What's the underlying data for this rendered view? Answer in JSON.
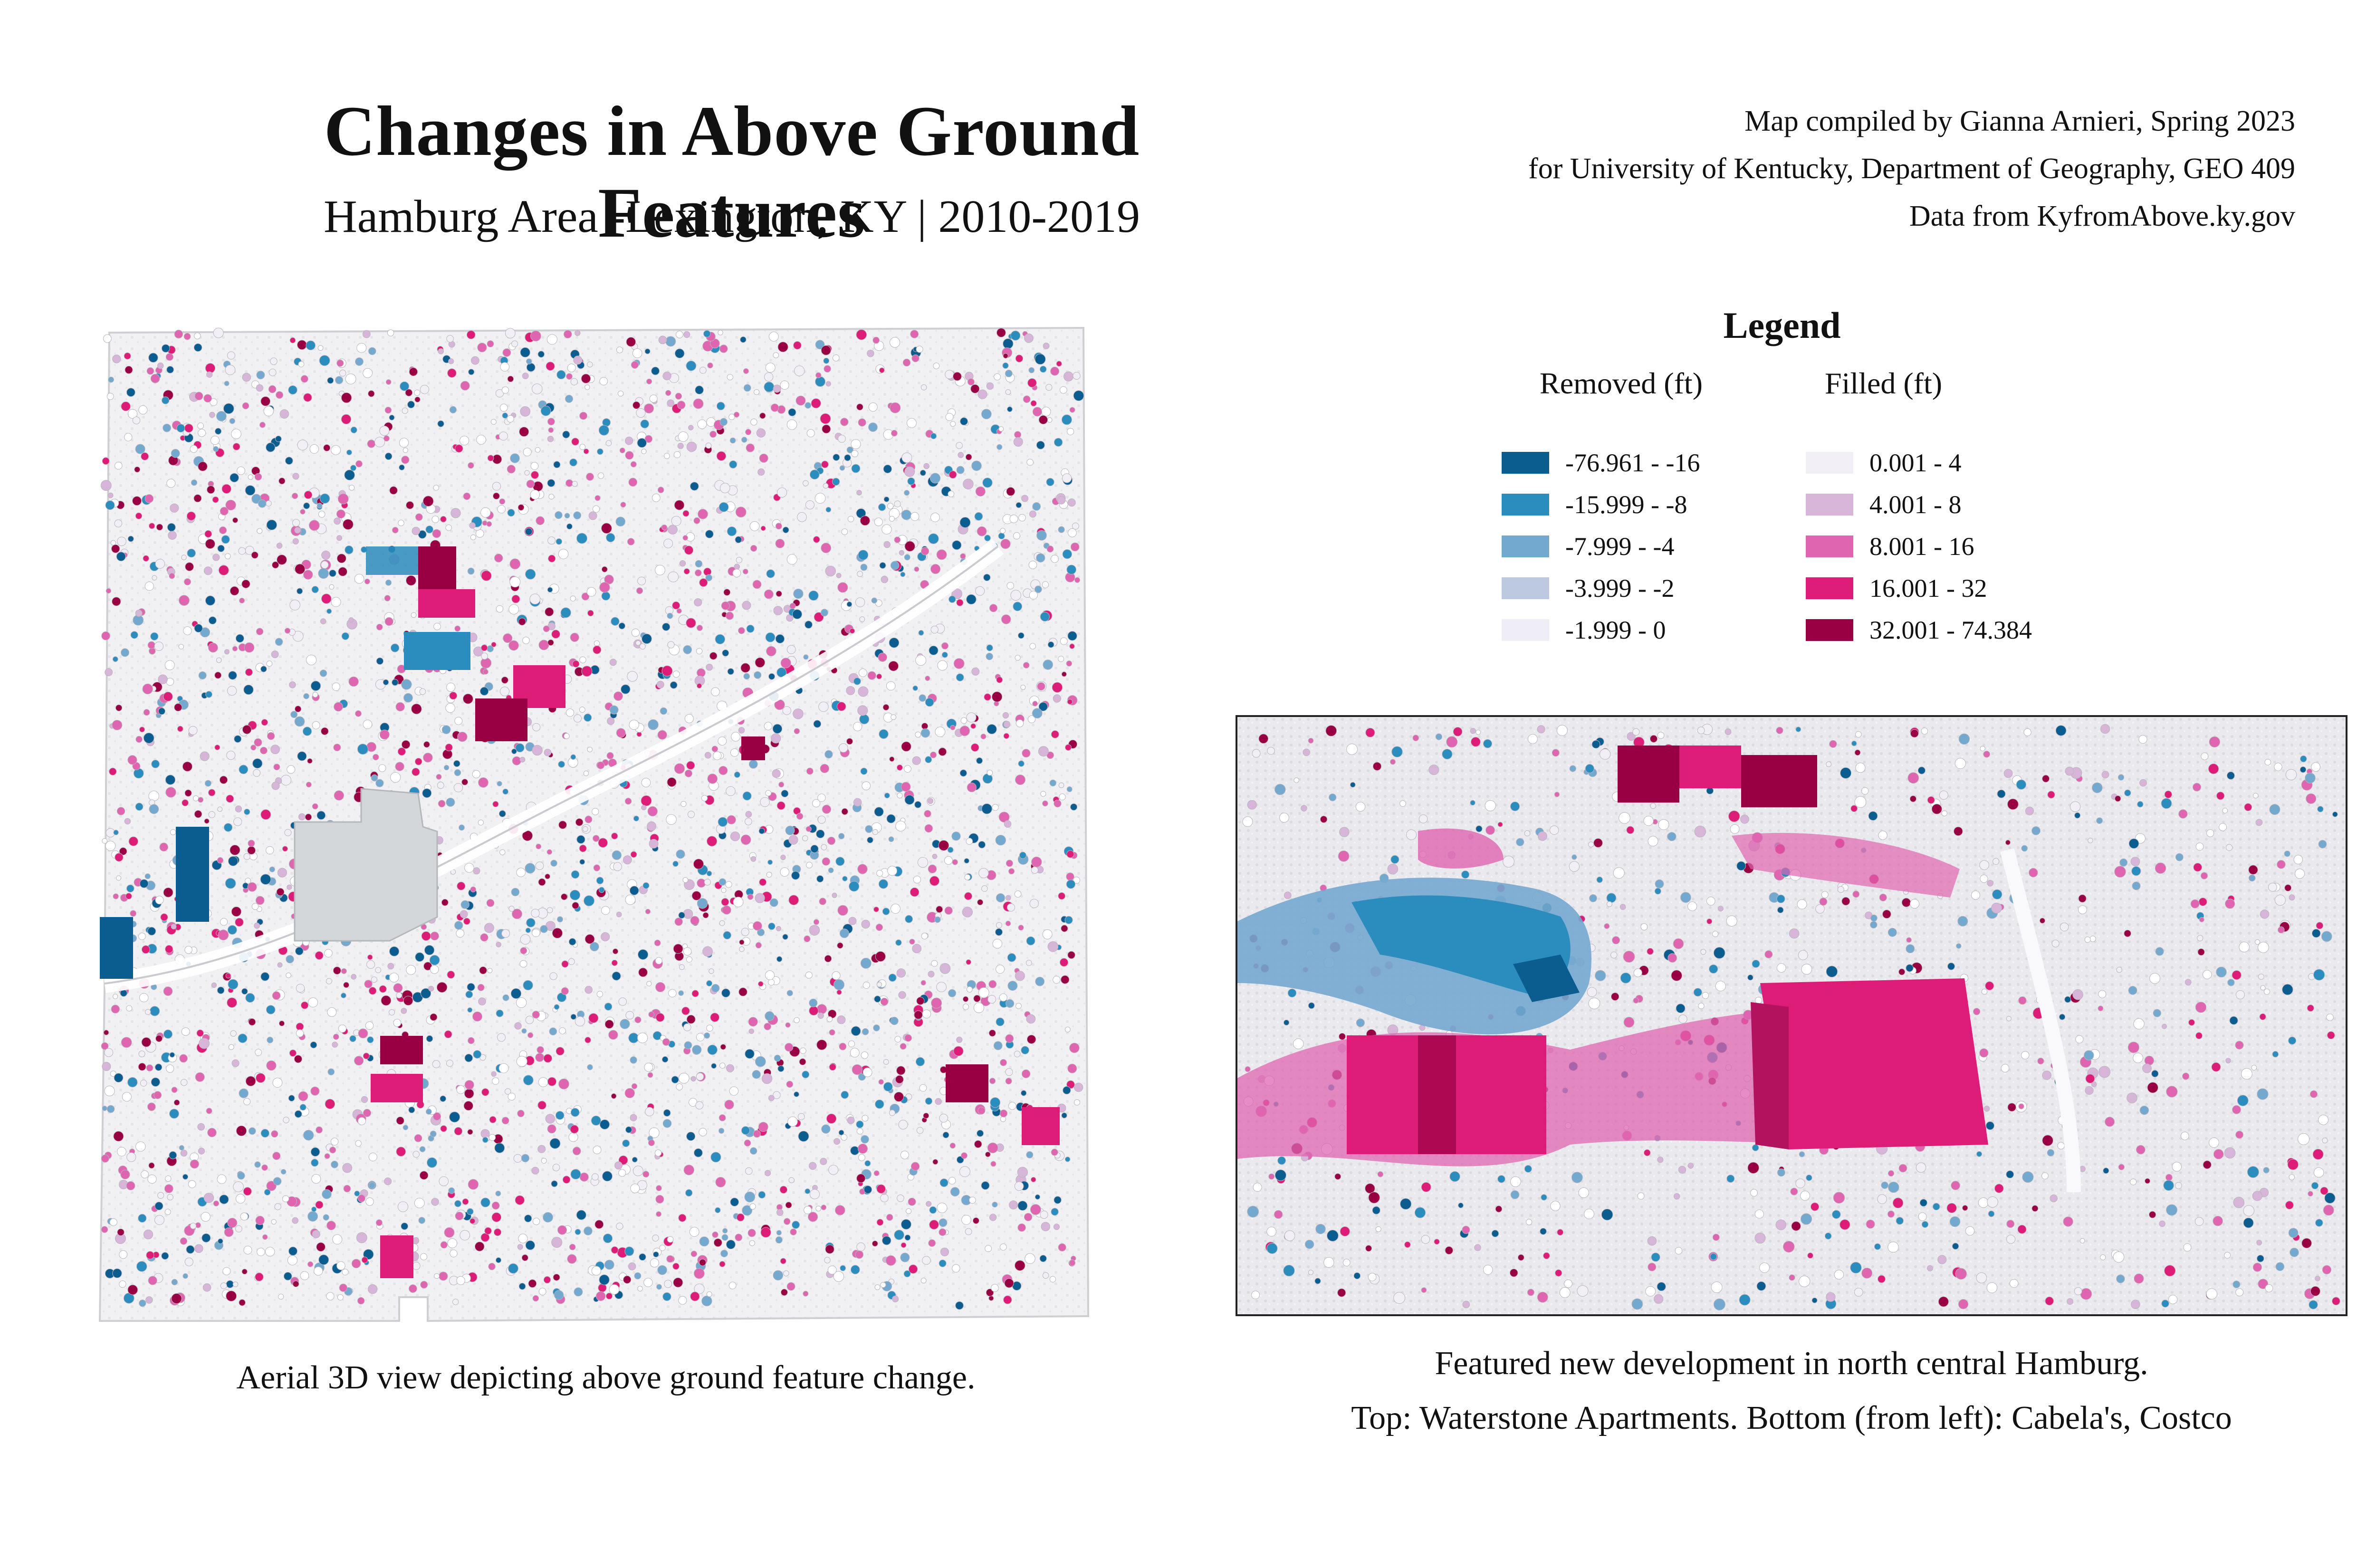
{
  "title": "Changes in Above Ground Features",
  "subtitle": "Hamburg Area -Lexington, KY | 2010-2019",
  "credits": [
    "Map compiled by Gianna Arnieri, Spring 2023",
    "for University of Kentucky, Department of Geography, GEO 409",
    "Data from KyfromAbove.ky.gov"
  ],
  "legend": {
    "title": "Legend",
    "removed": {
      "heading": "Removed (ft)",
      "classes": [
        {
          "label": "-76.961 - -16",
          "color": "#0b5c8f"
        },
        {
          "label": "-15.999 - -8",
          "color": "#2b8cbe"
        },
        {
          "label": "-7.999 - -4",
          "color": "#74a9cf"
        },
        {
          "label": "-3.999 - -2",
          "color": "#bdc9e1"
        },
        {
          "label": "-1.999 - 0",
          "color": "#efedf5"
        }
      ]
    },
    "filled": {
      "heading": "Filled (ft)",
      "classes": [
        {
          "label": "0.001 - 4",
          "color": "#f1eef6"
        },
        {
          "label": "4.001 - 8",
          "color": "#d7b5d8"
        },
        {
          "label": "8.001 - 16",
          "color": "#df65b0"
        },
        {
          "label": "16.001 - 32",
          "color": "#dd1c77"
        },
        {
          "label": "32.001 - 74.384",
          "color": "#980043"
        }
      ]
    }
  },
  "captions": {
    "main_map": "Aerial 3D view depicting above ground feature change.",
    "inset_line1": "Featured new development  in north central Hamburg.",
    "inset_line2": "Top: Waterstone Apartments. Bottom (from left): Cabela's, Costco"
  }
}
